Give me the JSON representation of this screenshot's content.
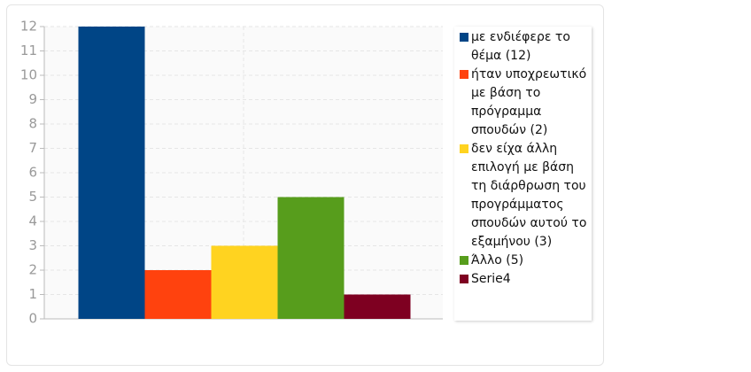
{
  "chart_data": {
    "type": "bar",
    "categories": [
      null
    ],
    "series": [
      {
        "name": "με ενδιέφερε το θέμα (12)",
        "color": "#004586",
        "values": [
          12
        ]
      },
      {
        "name": "ήταν υποχρεωτικό με βάση το πρόγραμμα σπουδών (2)",
        "color": "#ff420e",
        "values": [
          2
        ]
      },
      {
        "name": "δεν είχα άλλη επιλογή με βάση τη διάρθρωση του προγράμματος σπουδών αυτού το εξαμήνου (3)",
        "color": "#ffd320",
        "values": [
          3
        ]
      },
      {
        "name": "Άλλο (5)",
        "color": "#579d1c",
        "values": [
          5
        ]
      },
      {
        "name": "Serie4",
        "color": "#7e0021",
        "values": [
          1
        ]
      }
    ],
    "ylim": [
      0,
      12
    ],
    "yticks": [
      0,
      1,
      2,
      3,
      4,
      5,
      6,
      7,
      8,
      9,
      10,
      11,
      12
    ],
    "grid": true,
    "legend": "right"
  }
}
